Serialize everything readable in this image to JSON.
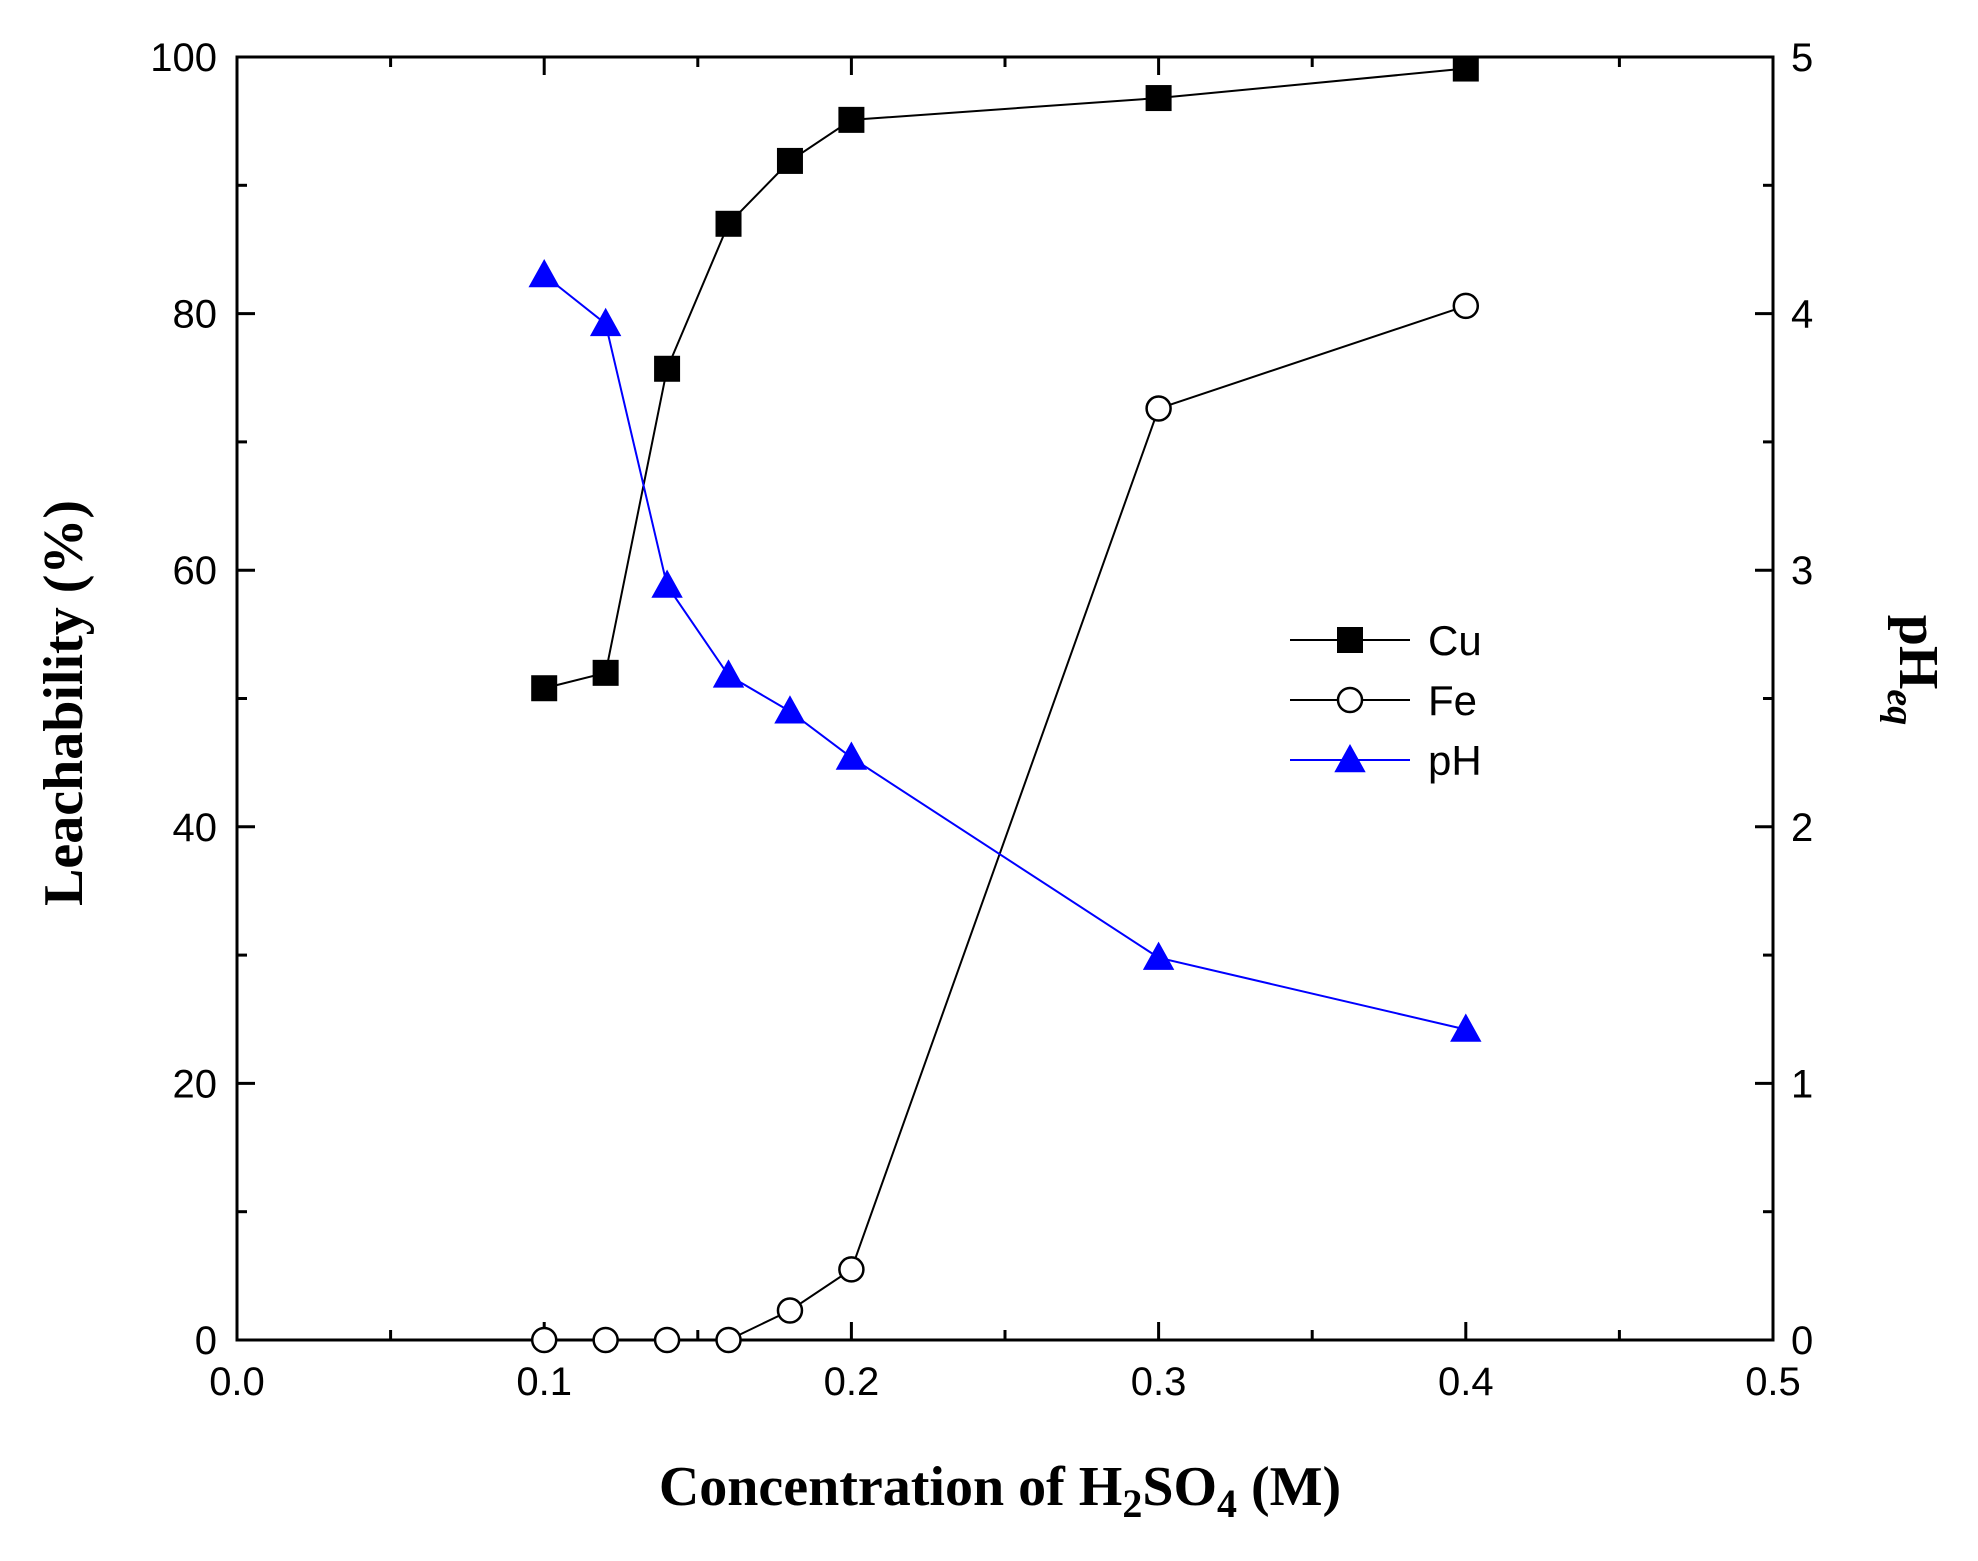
{
  "chart_data": {
    "type": "line",
    "x": [
      0.1,
      0.12,
      0.14,
      0.16,
      0.18,
      0.2,
      0.3,
      0.4
    ],
    "series": [
      {
        "name": "Cu",
        "axis": "left",
        "marker": "filled-square",
        "color": "#000000",
        "values": [
          50.8,
          52.0,
          75.7,
          87.0,
          91.9,
          95.1,
          96.8,
          99.1
        ]
      },
      {
        "name": "Fe",
        "axis": "left",
        "marker": "open-circle",
        "color": "#000000",
        "values": [
          0.0,
          0.0,
          0.0,
          0.0,
          2.3,
          5.5,
          72.6,
          80.6
        ]
      },
      {
        "name": "pH",
        "axis": "right",
        "marker": "filled-triangle",
        "color": "#0000ff",
        "values": [
          4.15,
          3.96,
          2.94,
          2.59,
          2.45,
          2.27,
          1.49,
          1.21
        ]
      }
    ],
    "xlim": [
      0.0,
      0.5
    ],
    "ylim": [
      0,
      100
    ],
    "y2lim": [
      0,
      5
    ],
    "xticks": [
      "0.0",
      "0.1",
      "0.2",
      "0.3",
      "0.4",
      "0.5"
    ],
    "xticks_minor": [
      0.05,
      0.15,
      0.25,
      0.35,
      0.45
    ],
    "yticks": [
      "0",
      "20",
      "40",
      "60",
      "80",
      "100"
    ],
    "y2ticks": [
      "0",
      "1",
      "2",
      "3",
      "4",
      "5"
    ],
    "xlabel": {
      "prefix": "Concentration of H",
      "sub1": "2",
      "mid": "SO",
      "sub2": "4",
      "suffix": " (M)"
    },
    "ylabel": "Leachability (%)",
    "y2label": {
      "main": "pH",
      "sub": "eq"
    },
    "legend_position": "center-right",
    "grid": false
  }
}
